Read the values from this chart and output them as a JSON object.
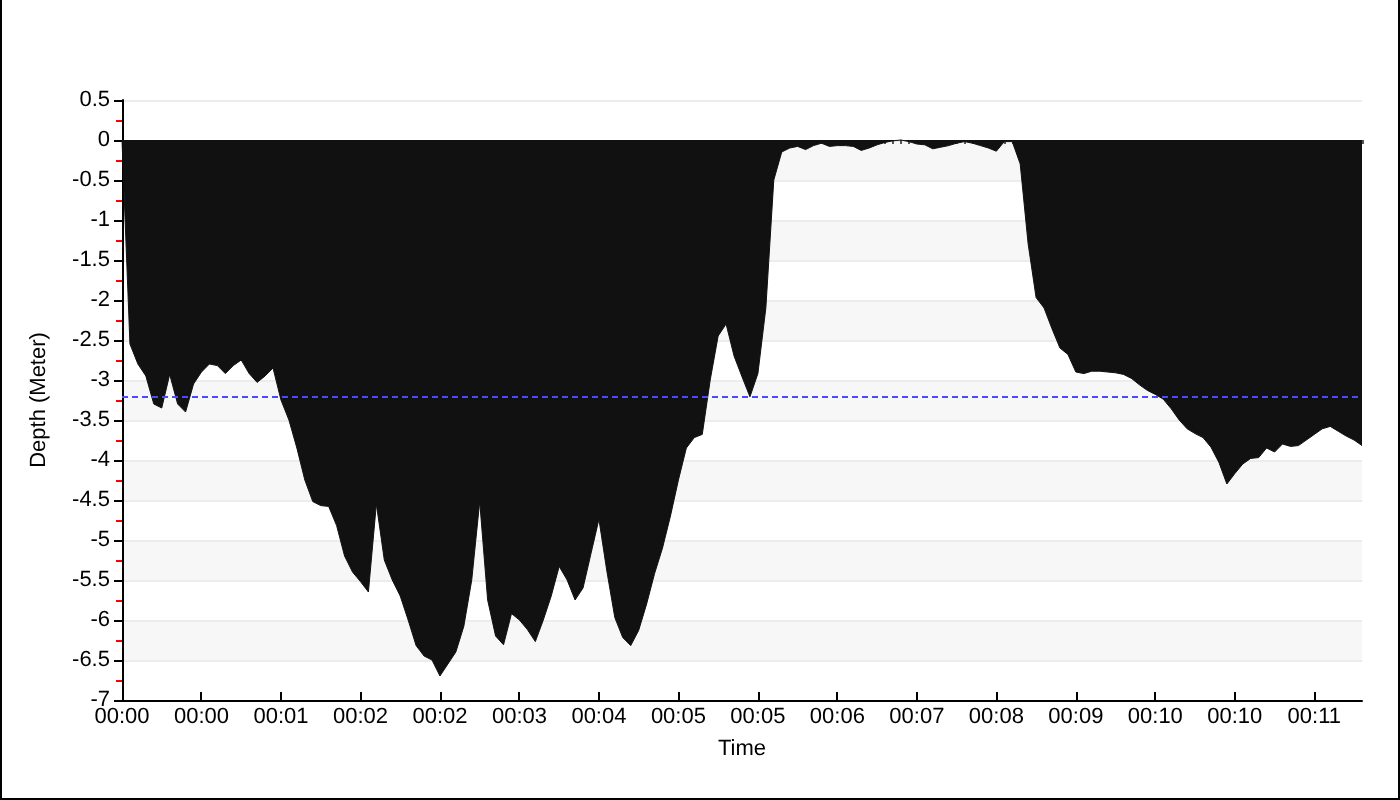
{
  "chart_data": {
    "type": "area",
    "xlabel": "Time",
    "ylabel": "Depth (Meter)",
    "categories": [
      "00:00",
      null,
      null,
      null,
      null,
      null,
      null,
      null,
      null,
      null,
      "00:00",
      null,
      null,
      null,
      null,
      null,
      null,
      null,
      null,
      null,
      "00:01",
      null,
      null,
      null,
      null,
      null,
      null,
      null,
      null,
      null,
      "00:02",
      null,
      null,
      null,
      null,
      null,
      null,
      null,
      null,
      null,
      "00:02",
      null,
      null,
      null,
      null,
      null,
      null,
      null,
      null,
      null,
      "00:03",
      null,
      null,
      null,
      null,
      null,
      null,
      null,
      null,
      null,
      "00:04",
      null,
      null,
      null,
      null,
      null,
      null,
      null,
      null,
      null,
      "00:05",
      null,
      null,
      null,
      null,
      null,
      null,
      null,
      null,
      null,
      "00:05",
      null,
      null,
      null,
      null,
      null,
      null,
      null,
      null,
      null,
      "00:06",
      null,
      null,
      null,
      null,
      null,
      null,
      null,
      null,
      null,
      "00:07",
      null,
      null,
      null,
      null,
      null,
      null,
      null,
      null,
      null,
      "00:08",
      null,
      null,
      null,
      null,
      null,
      null,
      null,
      null,
      null,
      "00:09",
      null,
      null,
      null,
      null,
      null,
      null,
      null,
      null,
      null,
      "00:10",
      null,
      null,
      null,
      null,
      null,
      null,
      null,
      null,
      null,
      "00:10",
      null,
      null,
      null,
      null,
      null,
      null,
      null,
      null,
      null,
      "00:11",
      null,
      null,
      null,
      null,
      null,
      null
    ],
    "values": [
      0,
      -2.55,
      -2.8,
      -2.95,
      -3.3,
      -3.35,
      -2.93,
      -3.3,
      -3.4,
      -3.05,
      -2.9,
      -2.8,
      -2.82,
      -2.92,
      -2.82,
      -2.75,
      -2.92,
      -3.03,
      -2.95,
      -2.85,
      -3.25,
      -3.5,
      -3.85,
      -4.25,
      -4.52,
      -4.57,
      -4.58,
      -4.82,
      -5.2,
      -5.4,
      -5.52,
      -5.65,
      -4.55,
      -5.25,
      -5.5,
      -5.7,
      -6.0,
      -6.32,
      -6.45,
      -6.5,
      -6.7,
      -6.55,
      -6.4,
      -6.08,
      -5.5,
      -4.52,
      -5.75,
      -6.2,
      -6.31,
      -5.92,
      -6.0,
      -6.12,
      -6.27,
      -6.0,
      -5.7,
      -5.33,
      -5.5,
      -5.75,
      -5.6,
      -5.17,
      -4.74,
      -5.39,
      -5.97,
      -6.22,
      -6.32,
      -6.13,
      -5.8,
      -5.42,
      -5.1,
      -4.7,
      -4.25,
      -3.85,
      -3.72,
      -3.68,
      -3.0,
      -2.45,
      -2.3,
      -2.7,
      -2.96,
      -3.21,
      -2.92,
      -2.1,
      -0.5,
      -0.15,
      -0.1,
      -0.08,
      -0.12,
      -0.07,
      -0.04,
      -0.08,
      -0.07,
      -0.07,
      -0.08,
      -0.13,
      -0.1,
      -0.06,
      -0.03,
      -0.01,
      0,
      -0.02,
      -0.05,
      -0.06,
      -0.11,
      -0.09,
      -0.07,
      -0.04,
      -0.02,
      -0.04,
      -0.07,
      -0.1,
      -0.14,
      -0.02,
      -0.02,
      -0.3,
      -1.3,
      -1.97,
      -2.1,
      -2.36,
      -2.6,
      -2.68,
      -2.9,
      -2.92,
      -2.89,
      -2.89,
      -2.9,
      -2.91,
      -2.93,
      -2.98,
      -3.06,
      -3.13,
      -3.18,
      -3.24,
      -3.36,
      -3.5,
      -3.61,
      -3.67,
      -3.72,
      -3.84,
      -4.03,
      -4.3,
      -4.17,
      -4.05,
      -3.98,
      -3.97,
      -3.85,
      -3.9,
      -3.8,
      -3.83,
      -3.82,
      -3.75,
      -3.68,
      -3.61,
      -3.58,
      -3.64,
      -3.7,
      -3.75,
      -3.82
    ],
    "color": "#111111",
    "marker": "none",
    "ylim": [
      -7,
      0.5
    ],
    "yticks": [
      -7,
      -6.5,
      -6,
      -5.5,
      -5,
      -4.5,
      -4,
      -3.5,
      -3,
      -2.5,
      -2,
      -1.5,
      -1,
      -0.5,
      0,
      0.5
    ],
    "grid": "y",
    "ref_lines": [
      {
        "axis": "y",
        "value": -3.2,
        "color": "#4a4aff",
        "line_style": "dashed"
      }
    ]
  }
}
